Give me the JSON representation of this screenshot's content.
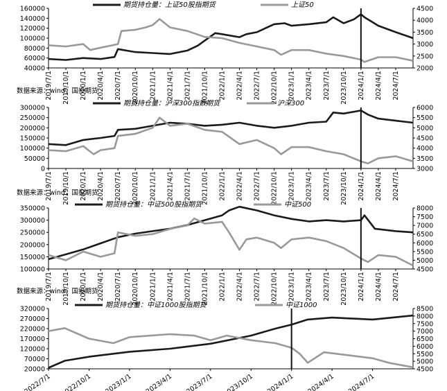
{
  "chart_data": [
    {
      "type": "line",
      "legend": [
        "期货持仓量：上证50股指期货",
        "上证50"
      ],
      "source": "数据来源：wind，国投期货",
      "x_ticks": [
        "2019/7/1",
        "2019/10/1",
        "2020/1/1",
        "2020/4/1",
        "2020/7/1",
        "2020/10/1",
        "2021/1/1",
        "2021/4/1",
        "2021/7/1",
        "2021/10/1",
        "2022/1/1",
        "2022/4/1",
        "2022/7/1",
        "2022/10/1",
        "2023/1/1",
        "2023/4/1",
        "2023/7/1",
        "2023/10/1",
        "2024/1/1",
        "2024/4/1",
        "2024/7/1"
      ],
      "y_left_ticks": [
        "160000",
        "140000",
        "120000",
        "100000",
        "80000",
        "60000",
        "40000"
      ],
      "y_right_ticks": [
        "4500",
        "4000",
        "3500",
        "3000",
        "2500",
        "2000"
      ],
      "y_left_range": [
        40000,
        160000
      ],
      "y_right_range": [
        2000,
        4500
      ],
      "x_range": [
        2019.5,
        2024.75
      ],
      "vline_x": 2024.0,
      "series": [
        {
          "axis": "left",
          "color": "#1a1a1a",
          "points": [
            [
              2019.5,
              58000
            ],
            [
              2019.75,
              56000
            ],
            [
              2020.0,
              60000
            ],
            [
              2020.25,
              58000
            ],
            [
              2020.45,
              62000
            ],
            [
              2020.5,
              78000
            ],
            [
              2020.75,
              72000
            ],
            [
              2021.0,
              70000
            ],
            [
              2021.25,
              68000
            ],
            [
              2021.5,
              75000
            ],
            [
              2021.65,
              85000
            ],
            [
              2021.75,
              95000
            ],
            [
              2021.9,
              110000
            ],
            [
              2022.0,
              108000
            ],
            [
              2022.25,
              102000
            ],
            [
              2022.35,
              108000
            ],
            [
              2022.5,
              112000
            ],
            [
              2022.75,
              128000
            ],
            [
              2022.9,
              130000
            ],
            [
              2023.0,
              125000
            ],
            [
              2023.25,
              128000
            ],
            [
              2023.5,
              132000
            ],
            [
              2023.6,
              142000
            ],
            [
              2023.75,
              130000
            ],
            [
              2023.9,
              138000
            ],
            [
              2024.0,
              148000
            ],
            [
              2024.05,
              142000
            ],
            [
              2024.25,
              125000
            ],
            [
              2024.5,
              112000
            ],
            [
              2024.75,
              100000
            ]
          ]
        },
        {
          "axis": "right",
          "color": "#999999",
          "points": [
            [
              2019.5,
              2950
            ],
            [
              2019.75,
              2900
            ],
            [
              2020.0,
              3000
            ],
            [
              2020.1,
              2750
            ],
            [
              2020.25,
              2850
            ],
            [
              2020.5,
              3000
            ],
            [
              2020.55,
              3550
            ],
            [
              2020.75,
              3600
            ],
            [
              2020.9,
              3700
            ],
            [
              2021.0,
              3800
            ],
            [
              2021.1,
              4050
            ],
            [
              2021.25,
              3700
            ],
            [
              2021.5,
              3550
            ],
            [
              2021.75,
              3300
            ],
            [
              2022.0,
              3250
            ],
            [
              2022.25,
              3050
            ],
            [
              2022.5,
              2900
            ],
            [
              2022.75,
              2750
            ],
            [
              2022.85,
              2550
            ],
            [
              2023.0,
              2750
            ],
            [
              2023.25,
              2750
            ],
            [
              2023.5,
              2600
            ],
            [
              2023.75,
              2500
            ],
            [
              2024.0,
              2350
            ],
            [
              2024.05,
              2250
            ],
            [
              2024.25,
              2450
            ],
            [
              2024.5,
              2450
            ],
            [
              2024.75,
              2300
            ]
          ]
        }
      ]
    },
    {
      "type": "line",
      "legend": [
        "期货持仓量：沪深300指数期货",
        "沪深300"
      ],
      "source": "数据来源：wind，国投期货",
      "x_ticks": [
        "2019/7/1",
        "2019/10/1",
        "2020/1/1",
        "2020/4/1",
        "2020/7/1",
        "2020/10/1",
        "2021/1/1",
        "2021/4/1",
        "2021/7/1",
        "2021/10/1",
        "2022/1/1",
        "2022/4/1",
        "2022/7/1",
        "2022/10/1",
        "2023/1/1",
        "2023/4/1",
        "2023/7/1",
        "2023/10/1",
        "2024/1/1",
        "2024/4/1",
        "2024/7/1"
      ],
      "y_left_ticks": [
        "300000",
        "250000",
        "200000",
        "150000",
        "100000",
        "50000",
        "0"
      ],
      "y_right_ticks": [
        "6000",
        "5500",
        "5000",
        "4500",
        "4000",
        "3500",
        "3000"
      ],
      "y_left_range": [
        0,
        300000
      ],
      "y_right_range": [
        3000,
        6000
      ],
      "x_range": [
        2019.5,
        2024.75
      ],
      "vline_x": 2024.0,
      "series": [
        {
          "axis": "left",
          "color": "#1a1a1a",
          "points": [
            [
              2019.5,
              120000
            ],
            [
              2019.75,
              115000
            ],
            [
              2020.0,
              140000
            ],
            [
              2020.25,
              150000
            ],
            [
              2020.45,
              160000
            ],
            [
              2020.5,
              190000
            ],
            [
              2020.75,
              195000
            ],
            [
              2021.0,
              210000
            ],
            [
              2021.25,
              225000
            ],
            [
              2021.5,
              220000
            ],
            [
              2021.75,
              210000
            ],
            [
              2022.0,
              215000
            ],
            [
              2022.25,
              225000
            ],
            [
              2022.5,
              210000
            ],
            [
              2022.75,
              200000
            ],
            [
              2023.0,
              210000
            ],
            [
              2023.25,
              225000
            ],
            [
              2023.5,
              230000
            ],
            [
              2023.6,
              275000
            ],
            [
              2023.75,
              270000
            ],
            [
              2024.0,
              285000
            ],
            [
              2024.1,
              265000
            ],
            [
              2024.25,
              245000
            ],
            [
              2024.5,
              235000
            ],
            [
              2024.75,
              225000
            ]
          ]
        },
        {
          "axis": "right",
          "color": "#999999",
          "points": [
            [
              2019.5,
              3900
            ],
            [
              2019.75,
              3850
            ],
            [
              2020.0,
              4100
            ],
            [
              2020.15,
              3700
            ],
            [
              2020.25,
              3900
            ],
            [
              2020.45,
              4000
            ],
            [
              2020.5,
              4600
            ],
            [
              2020.75,
              4700
            ],
            [
              2021.0,
              5000
            ],
            [
              2021.1,
              5500
            ],
            [
              2021.25,
              5100
            ],
            [
              2021.5,
              5200
            ],
            [
              2021.75,
              4900
            ],
            [
              2022.0,
              4800
            ],
            [
              2022.25,
              4200
            ],
            [
              2022.5,
              4400
            ],
            [
              2022.75,
              4000
            ],
            [
              2022.85,
              3700
            ],
            [
              2023.0,
              4050
            ],
            [
              2023.25,
              4050
            ],
            [
              2023.5,
              3850
            ],
            [
              2023.75,
              3700
            ],
            [
              2024.0,
              3350
            ],
            [
              2024.1,
              3250
            ],
            [
              2024.25,
              3500
            ],
            [
              2024.5,
              3600
            ],
            [
              2024.75,
              3350
            ]
          ]
        }
      ]
    },
    {
      "type": "line",
      "legend": [
        "期货持仓量：中证500股指期货",
        "中证500"
      ],
      "source": "数据来源：wind，国投期货",
      "x_ticks": [
        "2019/7/1",
        "2019/10/1",
        "2020/1/1",
        "2020/4/1",
        "2020/7/1",
        "2020/10/1",
        "2021/1/1",
        "2021/4/1",
        "2021/7/1",
        "2021/10/1",
        "2022/1/1",
        "2022/4/1",
        "2022/7/1",
        "2022/10/1",
        "2023/1/1",
        "2023/4/1",
        "2023/7/1",
        "2023/10/1",
        "2024/1/1",
        "2024/4/1",
        "2024/7/1"
      ],
      "y_left_ticks": [
        "350000",
        "300000",
        "250000",
        "200000",
        "150000",
        "100000"
      ],
      "y_right_ticks": [
        "8000",
        "7500",
        "7000",
        "6500",
        "6000",
        "5500",
        "5000",
        "4500"
      ],
      "y_left_range": [
        100000,
        350000
      ],
      "y_right_range": [
        4500,
        8000
      ],
      "x_range": [
        2019.5,
        2024.75
      ],
      "vline_x": 2024.0,
      "series": [
        {
          "axis": "left",
          "color": "#1a1a1a",
          "points": [
            [
              2019.5,
              140000
            ],
            [
              2019.75,
              160000
            ],
            [
              2020.0,
              180000
            ],
            [
              2020.25,
              205000
            ],
            [
              2020.5,
              230000
            ],
            [
              2020.75,
              245000
            ],
            [
              2021.0,
              255000
            ],
            [
              2021.25,
              265000
            ],
            [
              2021.5,
              280000
            ],
            [
              2021.75,
              300000
            ],
            [
              2022.0,
              320000
            ],
            [
              2022.1,
              340000
            ],
            [
              2022.25,
              355000
            ],
            [
              2022.5,
              340000
            ],
            [
              2022.75,
              320000
            ],
            [
              2023.0,
              305000
            ],
            [
              2023.25,
              295000
            ],
            [
              2023.5,
              300000
            ],
            [
              2023.75,
              295000
            ],
            [
              2024.0,
              300000
            ],
            [
              2024.05,
              320000
            ],
            [
              2024.2,
              265000
            ],
            [
              2024.5,
              255000
            ],
            [
              2024.75,
              250000
            ]
          ]
        },
        {
          "axis": "right",
          "color": "#999999",
          "points": [
            [
              2019.5,
              5300
            ],
            [
              2019.75,
              5000
            ],
            [
              2020.0,
              5500
            ],
            [
              2020.25,
              5200
            ],
            [
              2020.45,
              5400
            ],
            [
              2020.5,
              6600
            ],
            [
              2020.75,
              6400
            ],
            [
              2021.0,
              6500
            ],
            [
              2021.25,
              6800
            ],
            [
              2021.5,
              7000
            ],
            [
              2021.6,
              7400
            ],
            [
              2021.75,
              7100
            ],
            [
              2022.0,
              7200
            ],
            [
              2022.1,
              6600
            ],
            [
              2022.25,
              5600
            ],
            [
              2022.35,
              6200
            ],
            [
              2022.5,
              6300
            ],
            [
              2022.75,
              6000
            ],
            [
              2022.85,
              5700
            ],
            [
              2023.0,
              6200
            ],
            [
              2023.25,
              6300
            ],
            [
              2023.5,
              6100
            ],
            [
              2023.75,
              5700
            ],
            [
              2024.0,
              5100
            ],
            [
              2024.1,
              4900
            ],
            [
              2024.25,
              5300
            ],
            [
              2024.5,
              5200
            ],
            [
              2024.75,
              4700
            ]
          ]
        }
      ]
    },
    {
      "type": "line",
      "legend": [
        "期货持仓量：中证1000股指期货",
        "中证1000"
      ],
      "source": "",
      "x_ticks": [
        "2022/7/1",
        "2022/10/1",
        "2023/1/1",
        "2023/4/1",
        "2023/7/1",
        "2023/10/1",
        "2024/1/1",
        "2024/4/1",
        "2024/7/1"
      ],
      "y_left_ticks": [
        "320000",
        "270000",
        "220000",
        "170000",
        "120000",
        "70000",
        "20000"
      ],
      "y_right_ticks": [
        "8500",
        "8000",
        "7500",
        "7000",
        "6500",
        "6000",
        "5500",
        "5000",
        "4500"
      ],
      "y_left_range": [
        20000,
        320000
      ],
      "y_right_range": [
        4500,
        8500
      ],
      "x_range": [
        2022.5,
        2024.75
      ],
      "vline_x": 2024.0,
      "series": [
        {
          "axis": "left",
          "color": "#1a1a1a",
          "points": [
            [
              2022.5,
              25000
            ],
            [
              2022.6,
              60000
            ],
            [
              2022.75,
              80000
            ],
            [
              2023.0,
              105000
            ],
            [
              2023.25,
              120000
            ],
            [
              2023.5,
              145000
            ],
            [
              2023.75,
              185000
            ],
            [
              2023.9,
              220000
            ],
            [
              2024.0,
              240000
            ],
            [
              2024.1,
              265000
            ],
            [
              2024.25,
              275000
            ],
            [
              2024.5,
              265000
            ],
            [
              2024.75,
              285000
            ]
          ]
        },
        {
          "axis": "right",
          "color": "#999999",
          "points": [
            [
              2022.5,
              7000
            ],
            [
              2022.6,
              7200
            ],
            [
              2022.75,
              6500
            ],
            [
              2022.9,
              6200
            ],
            [
              2023.0,
              6600
            ],
            [
              2023.25,
              6800
            ],
            [
              2023.4,
              6700
            ],
            [
              2023.5,
              6400
            ],
            [
              2023.6,
              6700
            ],
            [
              2023.75,
              6400
            ],
            [
              2023.9,
              6200
            ],
            [
              2024.0,
              5900
            ],
            [
              2024.05,
              5500
            ],
            [
              2024.1,
              4900
            ],
            [
              2024.2,
              5600
            ],
            [
              2024.35,
              5400
            ],
            [
              2024.5,
              5200
            ],
            [
              2024.6,
              4900
            ],
            [
              2024.75,
              4600
            ]
          ]
        }
      ]
    }
  ]
}
